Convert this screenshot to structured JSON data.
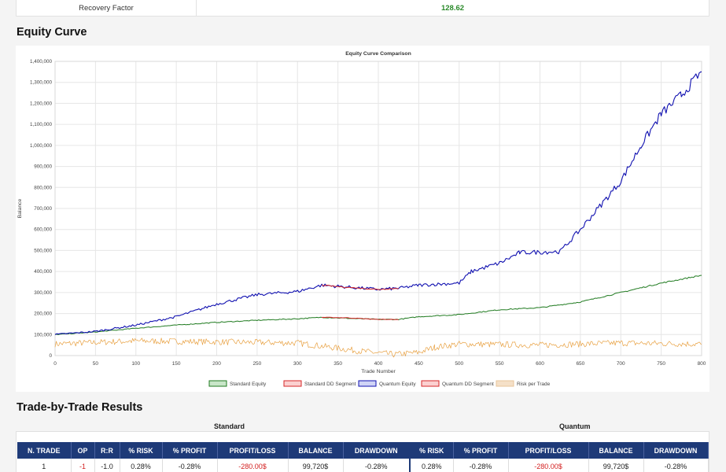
{
  "summary": {
    "label": "Recovery Factor",
    "value": "128.62"
  },
  "equity_section": {
    "title": "Equity Curve"
  },
  "trades_section": {
    "title": "Trade-by-Trade Results",
    "group_standard": "Standard",
    "group_quantum": "Quantum"
  },
  "chart_data": {
    "type": "line",
    "title": "Equity Curve Comparison",
    "xlabel": "Trade Number",
    "ylabel": "Balance",
    "xlim": [
      0,
      800
    ],
    "ylim": [
      0,
      1400000
    ],
    "x_ticks": [
      "0",
      "50",
      "100",
      "150",
      "200",
      "250",
      "300",
      "350",
      "400",
      "450",
      "500",
      "550",
      "600",
      "650",
      "700",
      "750",
      "800"
    ],
    "y_ticks": [
      "0",
      "100,000",
      "200,000",
      "300,000",
      "400,000",
      "500,000",
      "600,000",
      "700,000",
      "800,000",
      "900,000",
      "1,000,000",
      "1,100,000",
      "1,200,000",
      "1,300,000",
      "1,400,000"
    ],
    "grid": true,
    "legend_position": "bottom",
    "series": [
      {
        "name": "Standard Equity",
        "color": "#1f7a1f",
        "points": [
          [
            0,
            100000
          ],
          [
            50,
            112000
          ],
          [
            100,
            130000
          ],
          [
            150,
            145000
          ],
          [
            200,
            158000
          ],
          [
            250,
            168000
          ],
          [
            300,
            175000
          ],
          [
            330,
            182000
          ],
          [
            400,
            172000
          ],
          [
            425,
            172000
          ],
          [
            450,
            185000
          ],
          [
            500,
            195000
          ],
          [
            550,
            218000
          ],
          [
            600,
            228000
          ],
          [
            650,
            255000
          ],
          [
            700,
            300000
          ],
          [
            750,
            345000
          ],
          [
            800,
            382000
          ]
        ]
      },
      {
        "name": "Standard DD Segment",
        "color": "#d62728",
        "points": [
          [
            330,
            182000
          ],
          [
            360,
            180000
          ],
          [
            400,
            172000
          ],
          [
            425,
            172000
          ]
        ]
      },
      {
        "name": "Quantum Equity",
        "color": "#1010b0",
        "points": [
          [
            0,
            100000
          ],
          [
            50,
            115000
          ],
          [
            100,
            145000
          ],
          [
            150,
            185000
          ],
          [
            200,
            245000
          ],
          [
            250,
            290000
          ],
          [
            300,
            305000
          ],
          [
            330,
            335000
          ],
          [
            400,
            315000
          ],
          [
            425,
            320000
          ],
          [
            450,
            335000
          ],
          [
            500,
            345000
          ],
          [
            515,
            400000
          ],
          [
            550,
            440000
          ],
          [
            575,
            490000
          ],
          [
            625,
            495000
          ],
          [
            650,
            600000
          ],
          [
            700,
            830000
          ],
          [
            725,
            1000000
          ],
          [
            750,
            1150000
          ],
          [
            775,
            1240000
          ],
          [
            800,
            1350000
          ]
        ]
      },
      {
        "name": "Quantum DD Segment",
        "color": "#d62728",
        "points": [
          [
            330,
            335000
          ],
          [
            360,
            325000
          ],
          [
            400,
            315000
          ],
          [
            425,
            320000
          ]
        ]
      },
      {
        "name": "Risk per Trade",
        "color": "#e8a040",
        "points": [
          [
            0,
            55000
          ],
          [
            100,
            70000
          ],
          [
            200,
            65000
          ],
          [
            300,
            60000
          ],
          [
            340,
            40000
          ],
          [
            380,
            20000
          ],
          [
            420,
            5000
          ],
          [
            450,
            15000
          ],
          [
            470,
            40000
          ],
          [
            500,
            55000
          ],
          [
            600,
            50000
          ],
          [
            700,
            60000
          ],
          [
            800,
            55000
          ]
        ]
      }
    ]
  },
  "table": {
    "headers": [
      "N. TRADE",
      "OP",
      "R:R",
      "% RISK",
      "% PROFIT",
      "PROFIT/LOSS",
      "BALANCE",
      "DRAWDOWN",
      "% RISK",
      "% PROFIT",
      "PROFIT/LOSS",
      "BALANCE",
      "DRAWDOWN"
    ],
    "rows": [
      [
        "1",
        "-1",
        "-1.0",
        "0.28%",
        "-0.28%",
        "-280.00$",
        "99,720$",
        "-0.28%",
        "0.28%",
        "-0.28%",
        "-280.00$",
        "99,720$",
        "-0.28%"
      ]
    ]
  }
}
